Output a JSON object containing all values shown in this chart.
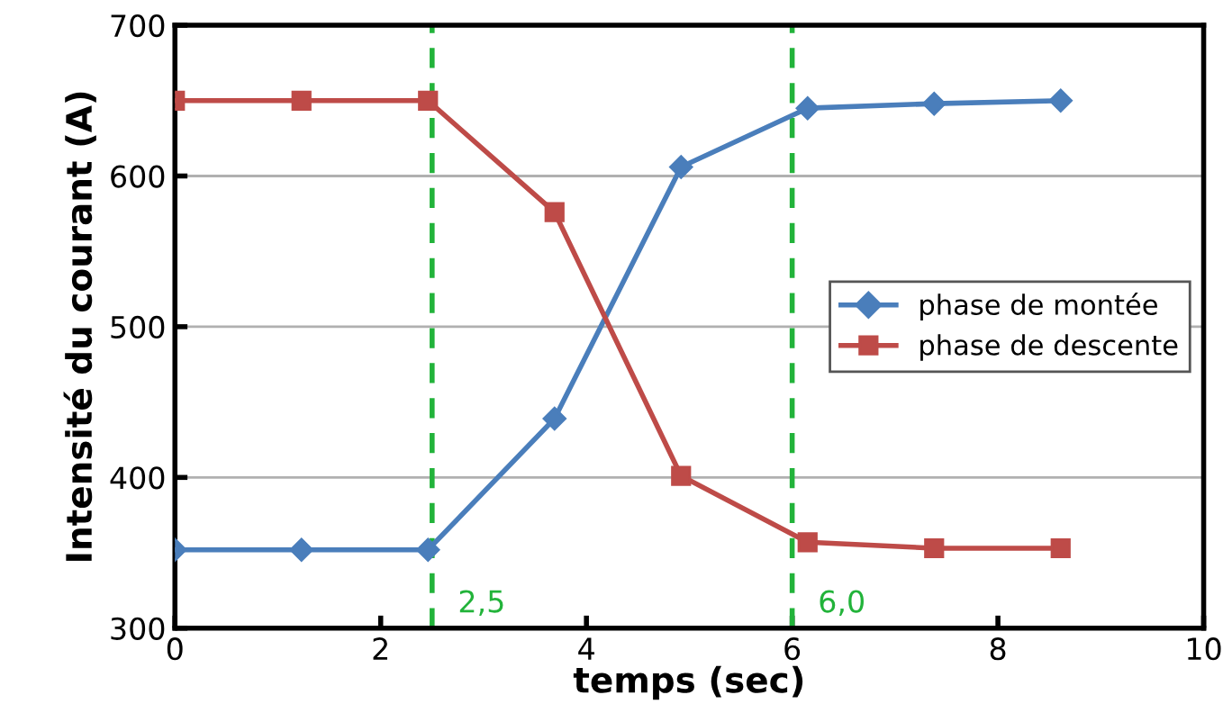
{
  "chart_data": {
    "type": "line",
    "xlabel": "temps (sec)",
    "ylabel": "Intensité du courant (A)",
    "series": [
      {
        "name": "phase de montée",
        "color": "#4a7ebb",
        "marker": "diamond",
        "x": [
          0,
          1.23,
          2.46,
          3.69,
          4.92,
          6.15,
          7.38,
          8.61
        ],
        "values": [
          352,
          352,
          352,
          439,
          606,
          645,
          648,
          650
        ]
      },
      {
        "name": "phase de descente",
        "color": "#be4b48",
        "marker": "square",
        "x": [
          0,
          1.23,
          2.46,
          3.69,
          4.92,
          6.15,
          7.38,
          8.61
        ],
        "values": [
          650,
          650,
          650,
          576,
          401,
          357,
          353,
          353
        ]
      }
    ],
    "xlim": [
      0,
      10
    ],
    "xticks": [
      0,
      2,
      4,
      6,
      8,
      10
    ],
    "ylim": [
      300,
      700
    ],
    "yticks": [
      300,
      400,
      500,
      600,
      700
    ],
    "grid": "y",
    "legend": "right",
    "line_style": "solid",
    "ref_lines": [
      {
        "axis": "x",
        "value": 2.5,
        "label": "2,5",
        "color": "#22b33a",
        "line_style": "dashed"
      },
      {
        "axis": "x",
        "value": 6.0,
        "label": "6,0",
        "color": "#22b33a",
        "line_style": "dashed"
      }
    ]
  }
}
